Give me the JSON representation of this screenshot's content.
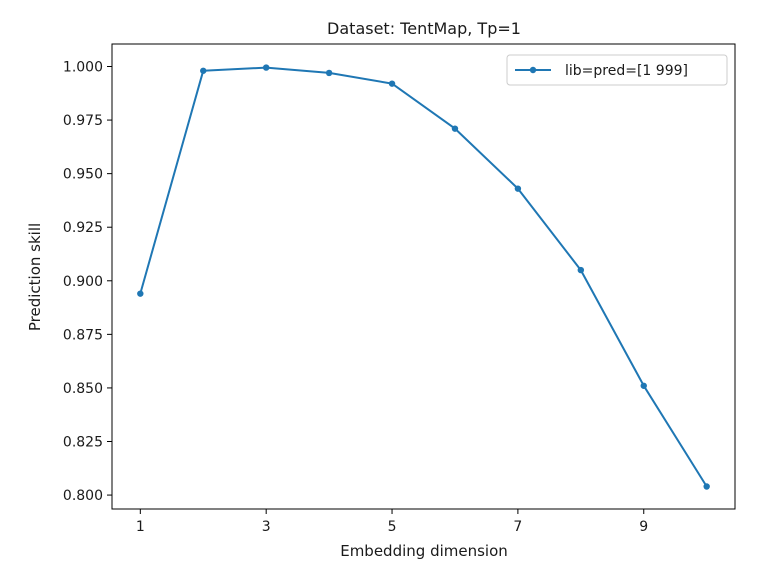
{
  "chart_data": {
    "type": "line",
    "title": "Dataset: TentMap, Tp=1",
    "xlabel": "Embedding dimension",
    "ylabel": "Prediction skill",
    "xlim": [
      0.55,
      10.45
    ],
    "ylim": [
      0.7935,
      1.0105
    ],
    "x_ticks": [
      1,
      3,
      5,
      7,
      9
    ],
    "x_tick_labels": [
      "1",
      "3",
      "5",
      "7",
      "9"
    ],
    "y_ticks": [
      0.8,
      0.825,
      0.85,
      0.875,
      0.9,
      0.925,
      0.95,
      0.975,
      1.0
    ],
    "y_tick_labels": [
      "0.800",
      "0.825",
      "0.850",
      "0.875",
      "0.900",
      "0.925",
      "0.950",
      "0.975",
      "1.000"
    ],
    "grid": false,
    "legend_position": "upper right",
    "series": [
      {
        "name": "lib=pred=[1 999]",
        "color": "#1f77b4",
        "x": [
          1,
          2,
          3,
          4,
          5,
          6,
          7,
          8,
          9,
          10
        ],
        "y": [
          0.894,
          0.998,
          0.9995,
          0.997,
          0.992,
          0.971,
          0.943,
          0.905,
          0.851,
          0.804
        ]
      }
    ]
  }
}
